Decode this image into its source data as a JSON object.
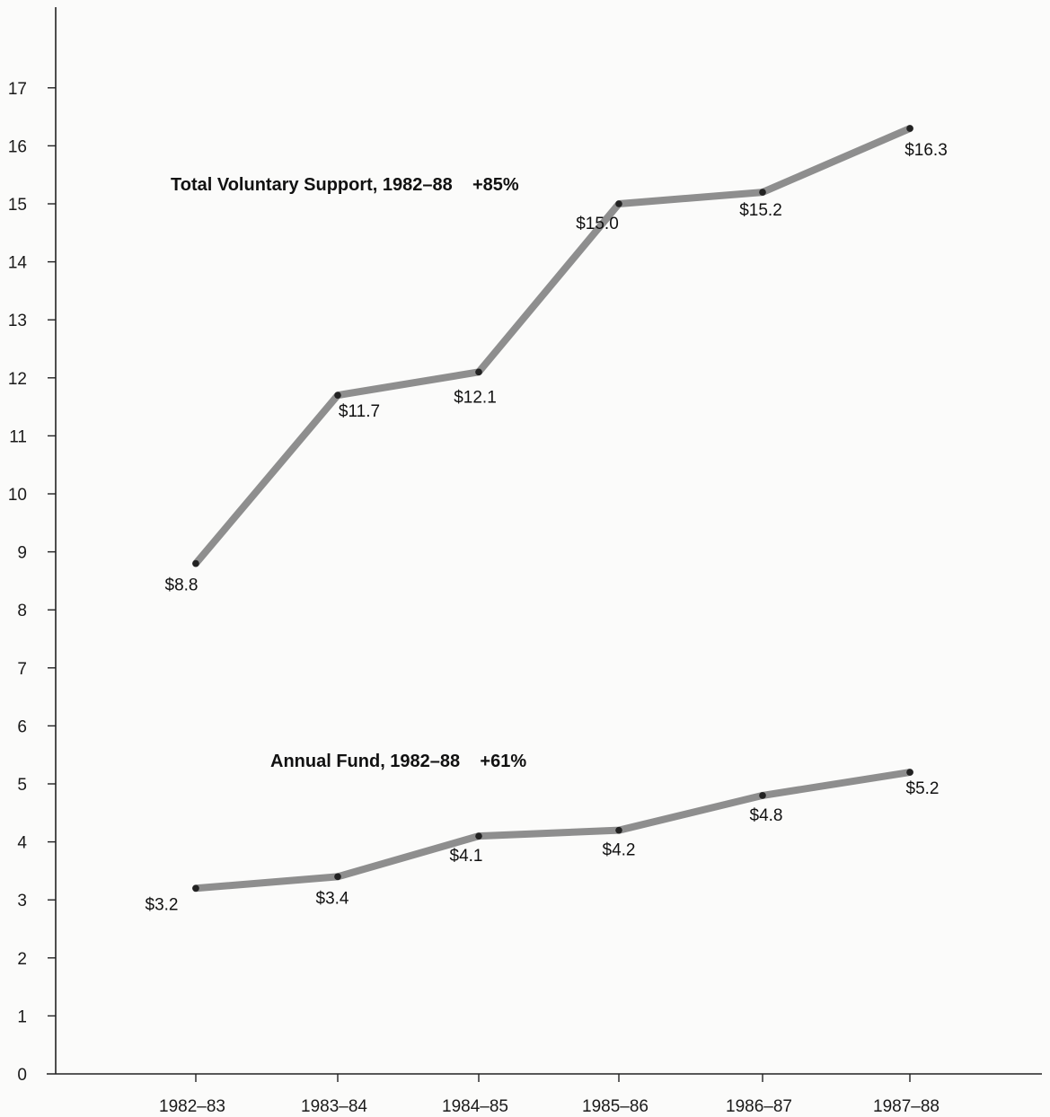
{
  "chart_data": {
    "type": "line",
    "categories": [
      "1982–83",
      "1983–84",
      "1984–85",
      "1985–86",
      "1986–87",
      "1987–88"
    ],
    "ylim": [
      0,
      17
    ],
    "yticks": [
      0,
      1,
      2,
      3,
      4,
      5,
      6,
      7,
      8,
      9,
      10,
      11,
      12,
      13,
      14,
      15,
      16,
      17
    ],
    "grid": false,
    "line_color": "#8e8e8e",
    "marker_color": "#222222",
    "series": [
      {
        "name": "Total Voluntary Support, 1982–88    +85%",
        "values": [
          8.8,
          11.7,
          12.1,
          15.0,
          15.2,
          16.3
        ],
        "labels": [
          "$8.8",
          "$11.7",
          "$12.1",
          "$15.0",
          "$15.2",
          "$16.3"
        ]
      },
      {
        "name": "Annual Fund, 1982–88    +61%",
        "values": [
          3.2,
          3.4,
          4.1,
          4.2,
          4.8,
          5.2
        ],
        "labels": [
          "$3.2",
          "$3.4",
          "$4.1",
          "$4.2",
          "$4.8",
          "$5.2"
        ]
      }
    ]
  }
}
